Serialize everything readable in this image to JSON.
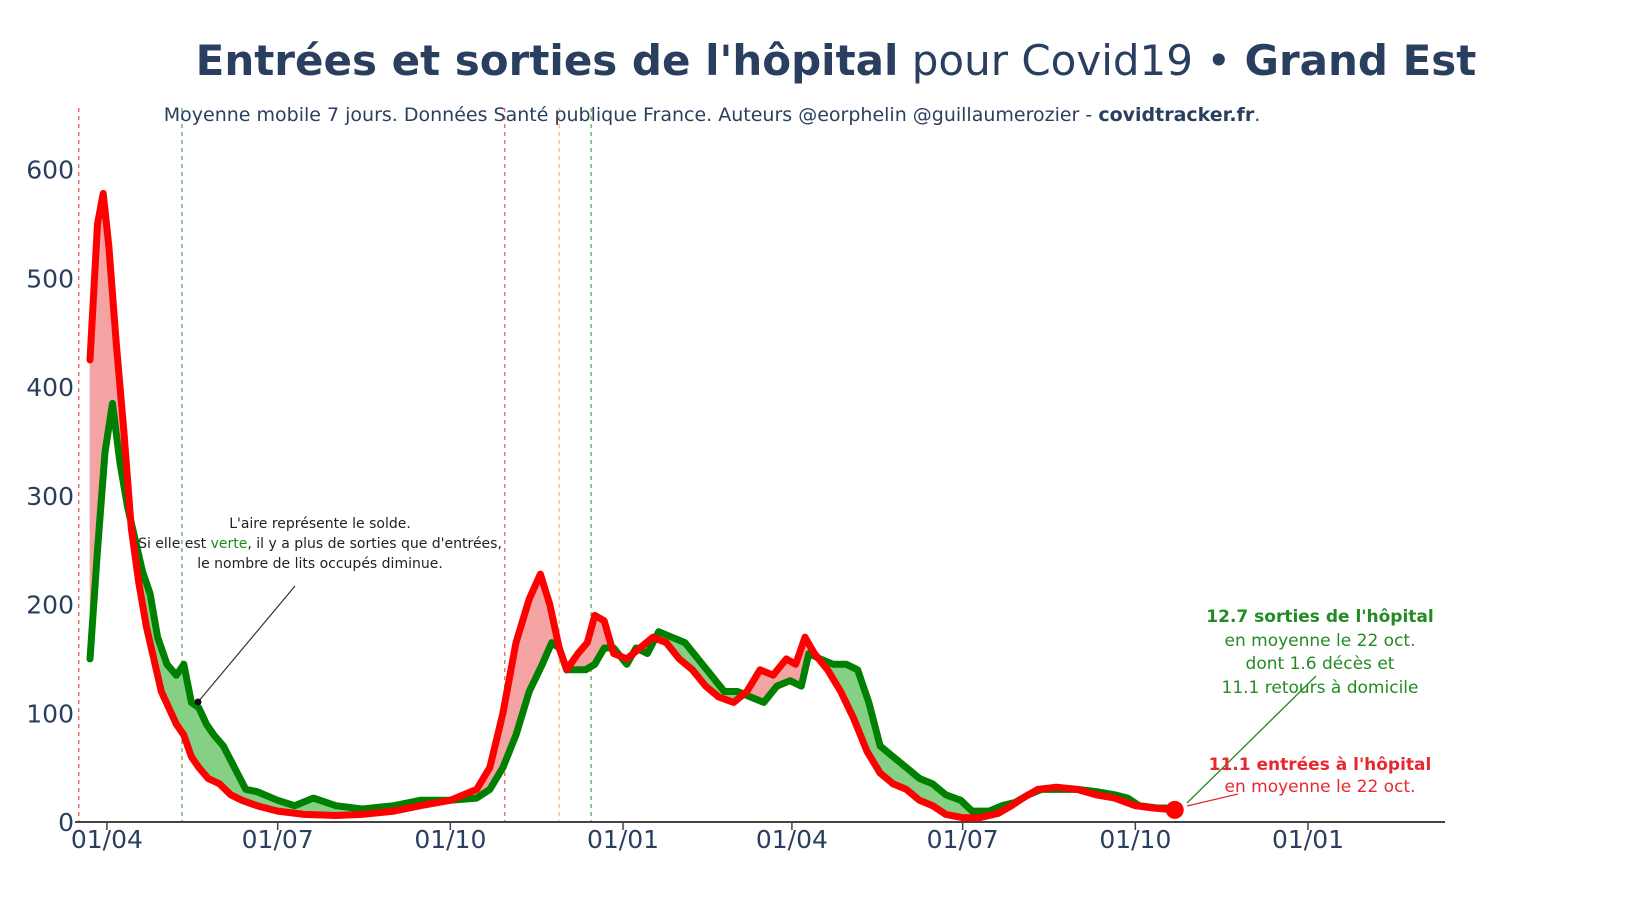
{
  "title": {
    "part1": "Entrées et sorties de l'hôpital",
    "part2": " pour Covid19 • ",
    "part3": "Grand Est"
  },
  "subtitle": {
    "text": "Moyenne mobile 7 jours. Données Santé publique France. Auteurs @eorphelin @guillaumerozier - ",
    "site": "covidtracker.fr",
    "end": "."
  },
  "note": {
    "line1": "L'aire représente le solde.",
    "line2a": "Si elle est ",
    "line2b": "verte",
    "line2c": ", il y a plus de sorties que d'entrées,",
    "line3": "le nombre de lits occupés diminue."
  },
  "annotation_out": {
    "bold": "12.7 sorties de l'hôpital",
    "line2": "en moyenne le 22 oct.",
    "line3": "dont 1.6 décès et",
    "line4": "11.1 retours à domicile"
  },
  "annotation_in": {
    "bold": "11.1 entrées à l'hôpital",
    "line2": "en moyenne le 22 oct."
  },
  "colors": {
    "entries": "#ff0000",
    "exits": "#008000",
    "fill_red": "#f4a3a3",
    "fill_green": "#85d085",
    "text": "#2a3f5f"
  },
  "chart_data": {
    "type": "line",
    "title": "Entrées et sorties de l'hôpital pour Covid19 • Grand Est",
    "ylim": [
      0,
      630
    ],
    "yticks": [
      0,
      100,
      200,
      300,
      400,
      500,
      600
    ],
    "xlim": [
      "2020-03-15",
      "2022-03-15"
    ],
    "xticks": [
      {
        "date": "2020-04-01",
        "label": "01/04"
      },
      {
        "date": "2020-07-01",
        "label": "01/07"
      },
      {
        "date": "2020-10-01",
        "label": "01/10"
      },
      {
        "date": "2021-01-01",
        "label": "01/01"
      },
      {
        "date": "2021-04-01",
        "label": "01/04"
      },
      {
        "date": "2021-07-01",
        "label": "01/07"
      },
      {
        "date": "2021-10-01",
        "label": "01/10"
      },
      {
        "date": "2022-01-01",
        "label": "01/01"
      }
    ],
    "vlines": [
      {
        "date": "2020-03-17",
        "color": "#e8282f"
      },
      {
        "date": "2020-05-11",
        "color": "#228b22"
      },
      {
        "date": "2020-10-30",
        "color": "#e8282f"
      },
      {
        "date": "2020-11-28",
        "color": "#ffa040"
      },
      {
        "date": "2020-12-15",
        "color": "#228b22"
      }
    ],
    "series": [
      {
        "key": "entries",
        "points": [
          [
            "2020-03-23",
            425
          ],
          [
            "2020-03-27",
            550
          ],
          [
            "2020-03-30",
            578
          ],
          [
            "2020-04-02",
            530
          ],
          [
            "2020-04-06",
            440
          ],
          [
            "2020-04-10",
            360
          ],
          [
            "2020-04-14",
            270
          ],
          [
            "2020-04-18",
            220
          ],
          [
            "2020-04-22",
            180
          ],
          [
            "2020-04-26",
            150
          ],
          [
            "2020-04-30",
            120
          ],
          [
            "2020-05-04",
            105
          ],
          [
            "2020-05-08",
            90
          ],
          [
            "2020-05-12",
            80
          ],
          [
            "2020-05-16",
            60
          ],
          [
            "2020-05-20",
            50
          ],
          [
            "2020-05-25",
            40
          ],
          [
            "2020-05-31",
            35
          ],
          [
            "2020-06-06",
            25
          ],
          [
            "2020-06-12",
            20
          ],
          [
            "2020-06-20",
            15
          ],
          [
            "2020-07-01",
            10
          ],
          [
            "2020-07-15",
            7
          ],
          [
            "2020-08-01",
            6
          ],
          [
            "2020-08-15",
            7
          ],
          [
            "2020-09-01",
            10
          ],
          [
            "2020-09-15",
            15
          ],
          [
            "2020-10-01",
            20
          ],
          [
            "2020-10-15",
            30
          ],
          [
            "2020-10-22",
            50
          ],
          [
            "2020-10-29",
            100
          ],
          [
            "2020-11-05",
            165
          ],
          [
            "2020-11-12",
            205
          ],
          [
            "2020-11-18",
            228
          ],
          [
            "2020-11-23",
            200
          ],
          [
            "2020-11-28",
            160
          ],
          [
            "2020-12-02",
            140
          ],
          [
            "2020-12-08",
            155
          ],
          [
            "2020-12-13",
            165
          ],
          [
            "2020-12-17",
            190
          ],
          [
            "2020-12-22",
            185
          ],
          [
            "2020-12-27",
            155
          ],
          [
            "2021-01-03",
            150
          ],
          [
            "2021-01-10",
            160
          ],
          [
            "2021-01-17",
            170
          ],
          [
            "2021-01-24",
            165
          ],
          [
            "2021-01-31",
            150
          ],
          [
            "2021-02-07",
            140
          ],
          [
            "2021-02-14",
            125
          ],
          [
            "2021-02-21",
            115
          ],
          [
            "2021-03-01",
            110
          ],
          [
            "2021-03-08",
            120
          ],
          [
            "2021-03-15",
            140
          ],
          [
            "2021-03-22",
            135
          ],
          [
            "2021-03-29",
            150
          ],
          [
            "2021-04-03",
            145
          ],
          [
            "2021-04-08",
            170
          ],
          [
            "2021-04-13",
            155
          ],
          [
            "2021-04-20",
            140
          ],
          [
            "2021-04-27",
            120
          ],
          [
            "2021-05-04",
            95
          ],
          [
            "2021-05-11",
            65
          ],
          [
            "2021-05-18",
            45
          ],
          [
            "2021-05-25",
            35
          ],
          [
            "2021-06-01",
            30
          ],
          [
            "2021-06-08",
            20
          ],
          [
            "2021-06-15",
            15
          ],
          [
            "2021-06-22",
            7
          ],
          [
            "2021-07-01",
            4
          ],
          [
            "2021-07-10",
            4
          ],
          [
            "2021-07-20",
            8
          ],
          [
            "2021-07-27",
            15
          ],
          [
            "2021-08-03",
            23
          ],
          [
            "2021-08-10",
            30
          ],
          [
            "2021-08-20",
            32
          ],
          [
            "2021-08-31",
            30
          ],
          [
            "2021-09-10",
            25
          ],
          [
            "2021-09-20",
            22
          ],
          [
            "2021-10-01",
            15
          ],
          [
            "2021-10-10",
            13
          ],
          [
            "2021-10-22",
            11.1
          ]
        ]
      },
      {
        "key": "exits",
        "points": [
          [
            "2020-03-23",
            150
          ],
          [
            "2020-03-27",
            250
          ],
          [
            "2020-03-31",
            340
          ],
          [
            "2020-04-04",
            385
          ],
          [
            "2020-04-08",
            330
          ],
          [
            "2020-04-12",
            290
          ],
          [
            "2020-04-16",
            260
          ],
          [
            "2020-04-20",
            230
          ],
          [
            "2020-04-24",
            210
          ],
          [
            "2020-04-28",
            170
          ],
          [
            "2020-05-03",
            145
          ],
          [
            "2020-05-08",
            135
          ],
          [
            "2020-05-12",
            145
          ],
          [
            "2020-05-16",
            110
          ],
          [
            "2020-05-20",
            105
          ],
          [
            "2020-05-24",
            90
          ],
          [
            "2020-05-28",
            80
          ],
          [
            "2020-06-02",
            70
          ],
          [
            "2020-06-08",
            50
          ],
          [
            "2020-06-14",
            30
          ],
          [
            "2020-06-20",
            28
          ],
          [
            "2020-07-01",
            20
          ],
          [
            "2020-07-10",
            15
          ],
          [
            "2020-07-20",
            22
          ],
          [
            "2020-08-01",
            15
          ],
          [
            "2020-08-15",
            12
          ],
          [
            "2020-09-01",
            15
          ],
          [
            "2020-09-15",
            20
          ],
          [
            "2020-10-01",
            20
          ],
          [
            "2020-10-15",
            22
          ],
          [
            "2020-10-22",
            30
          ],
          [
            "2020-10-29",
            50
          ],
          [
            "2020-11-05",
            80
          ],
          [
            "2020-11-12",
            120
          ],
          [
            "2020-11-19",
            145
          ],
          [
            "2020-11-24",
            165
          ],
          [
            "2020-11-28",
            160
          ],
          [
            "2020-12-02",
            140
          ],
          [
            "2020-12-07",
            140
          ],
          [
            "2020-12-12",
            140
          ],
          [
            "2020-12-17",
            145
          ],
          [
            "2020-12-22",
            160
          ],
          [
            "2020-12-27",
            160
          ],
          [
            "2021-01-03",
            145
          ],
          [
            "2021-01-08",
            160
          ],
          [
            "2021-01-14",
            155
          ],
          [
            "2021-01-20",
            175
          ],
          [
            "2021-01-27",
            170
          ],
          [
            "2021-02-03",
            165
          ],
          [
            "2021-02-10",
            150
          ],
          [
            "2021-02-17",
            135
          ],
          [
            "2021-02-24",
            120
          ],
          [
            "2021-03-03",
            120
          ],
          [
            "2021-03-10",
            115
          ],
          [
            "2021-03-17",
            110
          ],
          [
            "2021-03-24",
            125
          ],
          [
            "2021-03-31",
            130
          ],
          [
            "2021-04-06",
            125
          ],
          [
            "2021-04-10",
            155
          ],
          [
            "2021-04-16",
            150
          ],
          [
            "2021-04-23",
            145
          ],
          [
            "2021-04-30",
            145
          ],
          [
            "2021-05-06",
            140
          ],
          [
            "2021-05-12",
            110
          ],
          [
            "2021-05-18",
            70
          ],
          [
            "2021-05-25",
            60
          ],
          [
            "2021-06-01",
            50
          ],
          [
            "2021-06-08",
            40
          ],
          [
            "2021-06-15",
            35
          ],
          [
            "2021-06-22",
            25
          ],
          [
            "2021-06-30",
            20
          ],
          [
            "2021-07-06",
            10
          ],
          [
            "2021-07-15",
            10
          ],
          [
            "2021-07-22",
            15
          ],
          [
            "2021-07-29",
            18
          ],
          [
            "2021-08-05",
            25
          ],
          [
            "2021-08-12",
            30
          ],
          [
            "2021-08-20",
            30
          ],
          [
            "2021-08-31",
            30
          ],
          [
            "2021-09-10",
            28
          ],
          [
            "2021-09-20",
            25
          ],
          [
            "2021-09-27",
            22
          ],
          [
            "2021-10-03",
            15
          ],
          [
            "2021-10-12",
            13
          ],
          [
            "2021-10-22",
            12.7
          ]
        ]
      }
    ]
  }
}
